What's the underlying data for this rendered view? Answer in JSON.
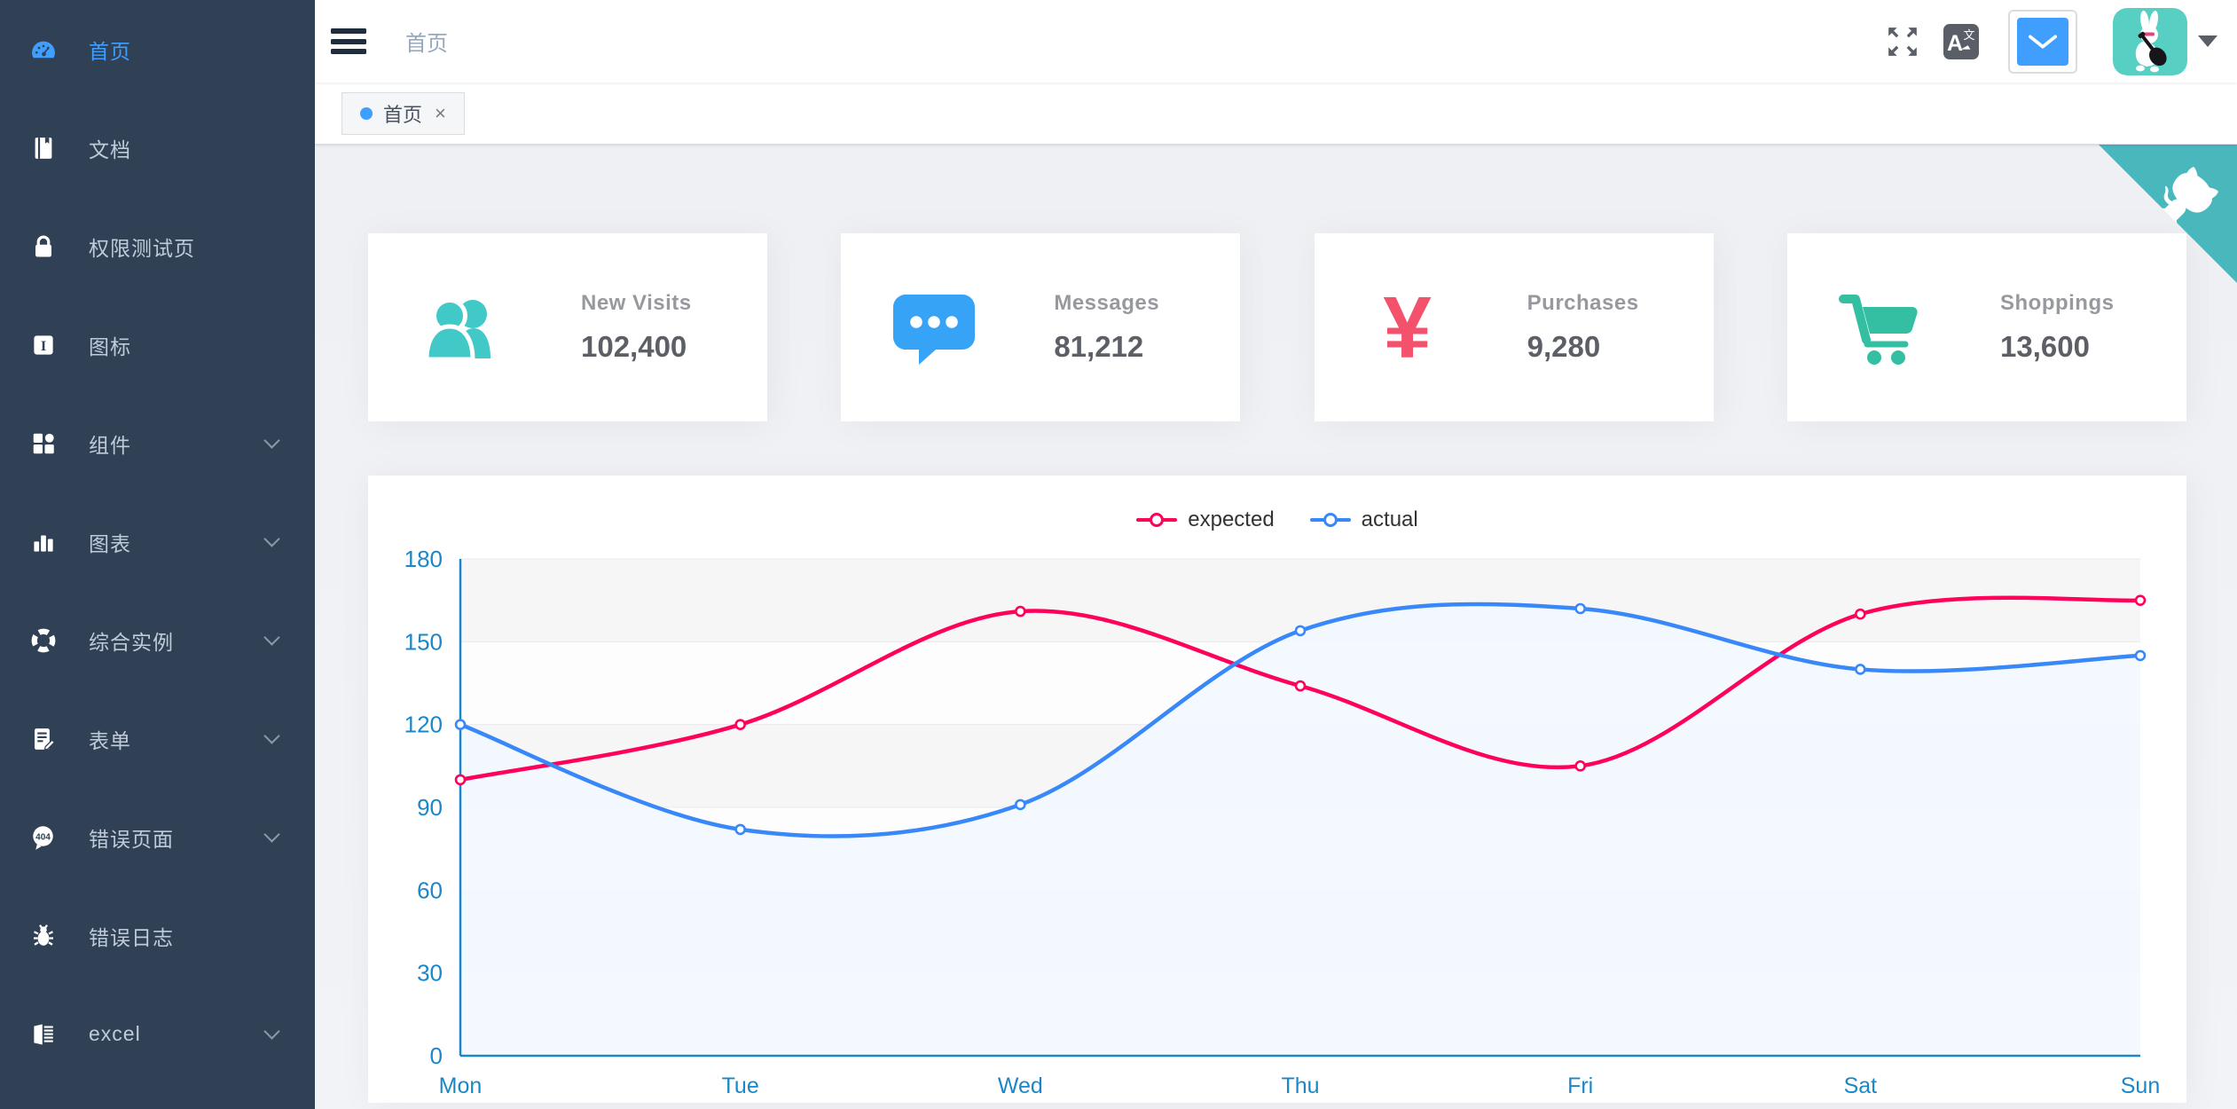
{
  "sidebar": {
    "items": [
      {
        "label": "首页",
        "icon": "dashboard-icon",
        "active": true,
        "expandable": false
      },
      {
        "label": "文档",
        "icon": "documentation-icon",
        "active": false,
        "expandable": false
      },
      {
        "label": "权限测试页",
        "icon": "lock-icon",
        "active": false,
        "expandable": false
      },
      {
        "label": "图标",
        "icon": "icons-icon",
        "active": false,
        "expandable": false
      },
      {
        "label": "组件",
        "icon": "component-icon",
        "active": false,
        "expandable": true
      },
      {
        "label": "图表",
        "icon": "chart-icon",
        "active": false,
        "expandable": true
      },
      {
        "label": "综合实例",
        "icon": "example-icon",
        "active": false,
        "expandable": true
      },
      {
        "label": "表单",
        "icon": "form-icon",
        "active": false,
        "expandable": true
      },
      {
        "label": "错误页面",
        "icon": "error-page-icon",
        "active": false,
        "expandable": true
      },
      {
        "label": "错误日志",
        "icon": "bug-icon",
        "active": false,
        "expandable": false
      },
      {
        "label": "excel",
        "icon": "excel-icon",
        "active": false,
        "expandable": true
      }
    ]
  },
  "navbar": {
    "breadcrumb": "首页",
    "language_icon_text": "A文"
  },
  "tags": {
    "active_tag": {
      "label": "首页",
      "close": "×"
    }
  },
  "cards": [
    {
      "title": "New Visits",
      "value": "102,400",
      "icon": "peoples-icon",
      "color": "#40c9c6"
    },
    {
      "title": "Messages",
      "value": "81,212",
      "icon": "message-icon",
      "color": "#36a3f7"
    },
    {
      "title": "Purchases",
      "value": "9,280",
      "icon": "money-icon",
      "color": "#f4516c",
      "symbol": "¥"
    },
    {
      "title": "Shoppings",
      "value": "13,600",
      "icon": "shopping-icon",
      "color": "#34bfa3"
    }
  ],
  "chart_data": {
    "type": "line",
    "categories": [
      "Mon",
      "Tue",
      "Wed",
      "Thu",
      "Fri",
      "Sat",
      "Sun"
    ],
    "series": [
      {
        "name": "expected",
        "color": "#FF005A",
        "values": [
          100,
          120,
          161,
          134,
          105,
          160,
          165
        ]
      },
      {
        "name": "actual",
        "color": "#3888fa",
        "values": [
          120,
          82,
          91,
          154,
          162,
          140,
          145
        ],
        "area_color": "#f3f8ff"
      }
    ],
    "title": "",
    "xlabel": "",
    "ylabel": "",
    "ylim": [
      0,
      180
    ],
    "ytick_step": 30,
    "grid": true,
    "legend_position": "top",
    "smooth": true
  },
  "colors": {
    "accent_blue": "#409eff",
    "sidebar_bg": "#304156",
    "sidebar_text": "#bfcbd9",
    "breadcrumb_text": "#97a8be",
    "axis_blue": "#1b87c9",
    "github_corner": "#4AB7BD",
    "avatar_bg": "#57cfc3",
    "page_bg": "#f0f2f5"
  }
}
